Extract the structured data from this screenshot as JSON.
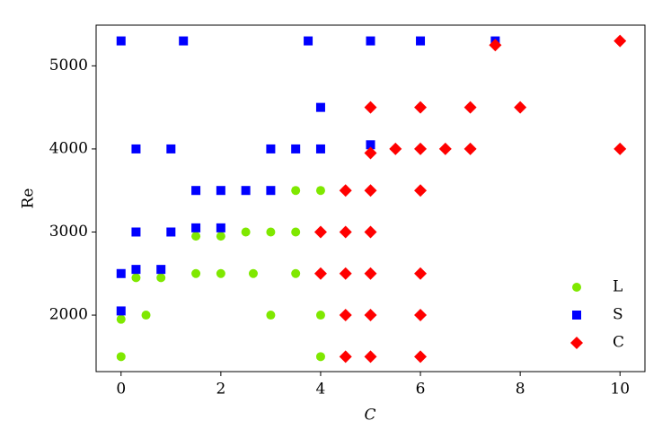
{
  "chart_data": {
    "type": "scatter",
    "x_label": "C",
    "y_label": "Re",
    "xlim": [
      -0.5,
      10.5
    ],
    "ylim": [
      1320,
      5490
    ],
    "xticks": [
      0,
      2,
      4,
      6,
      8,
      10
    ],
    "yticks": [
      2000,
      3000,
      4000,
      5000
    ],
    "grid": false,
    "legend": "lower right",
    "series": [
      {
        "name": "L",
        "color": "#7fe800",
        "marker": "circle",
        "x": [
          0,
          0,
          0.5,
          0.3,
          0.8,
          1.5,
          2,
          2.65,
          3.5,
          1.5,
          2,
          2.5,
          3,
          3.5,
          3.5,
          4,
          3,
          4,
          4
        ],
        "values": [
          1500,
          1950,
          2000,
          2450,
          2450,
          2500,
          2500,
          2500,
          2500,
          2950,
          2950,
          3000,
          3000,
          3000,
          3500,
          3500,
          2000,
          2000,
          1500
        ]
      },
      {
        "name": "S",
        "color": "#0000ff",
        "marker": "square",
        "x": [
          0,
          1.25,
          3.75,
          5,
          6,
          7.5,
          4,
          0.3,
          1,
          3,
          3.5,
          4,
          5,
          1.5,
          2,
          2.5,
          3,
          1.5,
          2,
          0.3,
          1,
          0.3,
          0.8,
          0,
          0
        ],
        "values": [
          5300,
          5300,
          5300,
          5300,
          5300,
          5300,
          4500,
          4000,
          4000,
          4000,
          4000,
          4000,
          4050,
          3500,
          3500,
          3500,
          3500,
          3050,
          3050,
          3000,
          3000,
          2550,
          2550,
          2500,
          2050
        ]
      },
      {
        "name": "C",
        "color": "#ff0000",
        "marker": "diamond",
        "x": [
          10,
          7.5,
          5,
          6,
          7,
          8,
          5,
          5.5,
          6,
          6.5,
          7,
          10,
          4.5,
          5,
          6,
          4,
          4.5,
          5,
          4,
          4.5,
          5,
          6,
          4.5,
          5,
          6,
          4.5,
          5,
          6
        ],
        "values": [
          5300,
          5250,
          4500,
          4500,
          4500,
          4500,
          3950,
          4000,
          4000,
          4000,
          4000,
          4000,
          3500,
          3500,
          3500,
          3000,
          3000,
          3000,
          2500,
          2500,
          2500,
          2500,
          2000,
          2000,
          2000,
          1500,
          1500,
          1500
        ]
      }
    ]
  }
}
